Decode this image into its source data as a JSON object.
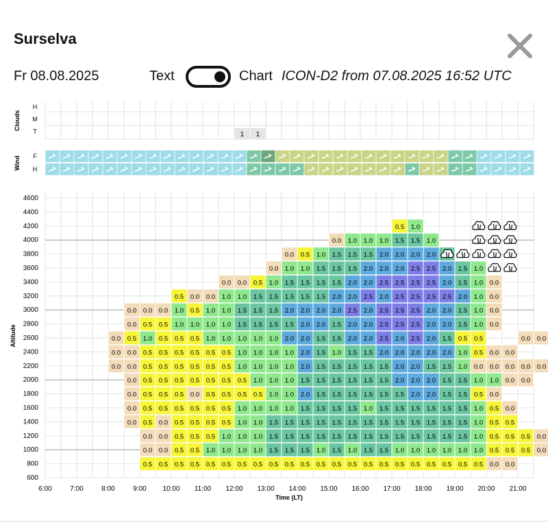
{
  "header": {
    "title": "Surselva",
    "date": "Fr 08.08.2025",
    "text_label": "Text",
    "chart_label": "Chart",
    "model_info": "ICON-D2 from 07.08.2025 16:52 UTC",
    "toggle_state": "chart"
  },
  "colors": {
    "c0.0": "#f2dcb9",
    "c0.5": "#f7f538",
    "c1.0": "#8fe88c",
    "c1.5": "#6ac6a0",
    "c2.0": "#5ea9dd",
    "c2.5": "#7e7ee8",
    "wind_light": "#9fdbe8",
    "wind_mid": "#7ec8a8",
    "wind_olive": "#c9d487",
    "wind_dark": "#6fa77c",
    "cloud_bg": "#e4e4e4"
  },
  "chart_data": {
    "type": "heatmap",
    "xlabel": "Time (LT)",
    "ylabel": "Altitude",
    "x_ticks": [
      "6:00",
      "7:00",
      "8:00",
      "9:00",
      "10:00",
      "11:00",
      "12:00",
      "13:00",
      "14:00",
      "15:00",
      "16:00",
      "17:00",
      "18:00",
      "19:00",
      "20:00",
      "21:00"
    ],
    "y_ticks": [
      "600",
      "800",
      "1000",
      "1200",
      "1400",
      "1600",
      "1800",
      "2000",
      "2200",
      "2400",
      "2600",
      "2800",
      "3000",
      "3200",
      "3400",
      "3600",
      "3800",
      "4000",
      "4200",
      "4400",
      "4600"
    ],
    "clouds_rows": [
      "H",
      "M",
      "T"
    ],
    "clouds_label": "Clouds",
    "cloud_T_values": [
      {
        "col": 12,
        "value": "1"
      },
      {
        "col": 13,
        "value": "1"
      }
    ],
    "wind_rows": [
      "F",
      "H"
    ],
    "wind_label": "Wind",
    "wind_F": [
      "L",
      "L",
      "L",
      "L",
      "L",
      "L",
      "L",
      "L",
      "L",
      "L",
      "L",
      "L",
      "L",
      "L",
      "M",
      "D",
      "O",
      "O",
      "O",
      "O",
      "O",
      "O",
      "O",
      "O",
      "O",
      "O",
      "O",
      "O",
      "M",
      "M",
      "L",
      "L",
      "L",
      "L"
    ],
    "wind_H": [
      "L",
      "L",
      "L",
      "L",
      "L",
      "L",
      "L",
      "L",
      "L",
      "L",
      "L",
      "L",
      "L",
      "L",
      "M",
      "M",
      "M",
      "M",
      "O",
      "O",
      "O",
      "O",
      "O",
      "O",
      "O",
      "M",
      "O",
      "O",
      "M",
      "M",
      "L",
      "L",
      "L",
      "L"
    ],
    "cumulus_icon_cells": [
      {
        "col": 25,
        "rows": [
          17
        ]
      },
      {
        "col": 26,
        "rows": [
          17
        ]
      },
      {
        "col": 27,
        "rows": [
          15,
          16,
          17
        ]
      },
      {
        "col": 28,
        "rows": [
          15,
          16,
          17,
          18
        ]
      },
      {
        "col": 29,
        "rows": [
          15,
          16,
          17,
          18
        ]
      }
    ],
    "rows": {
      "800": {
        "start": 6,
        "values": [
          "0.5",
          "0.5",
          "0.5",
          "0.5",
          "0.5",
          "0.5",
          "0.5",
          "0.5",
          "0.5",
          "0.5",
          "0.5",
          "0.5",
          "0.5",
          "0.5",
          "0.5",
          "0.5",
          "0.5",
          "0.5",
          "0.5",
          "0.5",
          "0.5",
          "0.5",
          "0.0",
          "0.0"
        ]
      },
      "1000": {
        "start": 6,
        "values": [
          "0.0",
          "0.0",
          "0.5",
          "0.5",
          "1.0",
          "1.0",
          "1.0",
          "1.0",
          "1.5",
          "1.5",
          "1.5",
          "1.0",
          "1.5",
          "1.0",
          "1.5",
          "1.5",
          "1.0",
          "1.0",
          "1.0",
          "1.0",
          "1.0",
          "1.0",
          "0.5",
          "0.5",
          "0.5",
          "0.0",
          "0.0",
          "",
          "0.0"
        ]
      },
      "1200": {
        "start": 6,
        "values": [
          "0.0",
          "0.0",
          "0.5",
          "0.5",
          "0.5",
          "1.0",
          "1.0",
          "1.0",
          "1.5",
          "1.5",
          "1.5",
          "1.5",
          "1.5",
          "1.5",
          "1.5",
          "1.5",
          "1.5",
          "1.5",
          "1.5",
          "1.5",
          "1.5",
          "1.0",
          "0.5",
          "0.5",
          "0.5",
          "0.0",
          "0.0",
          "0.0",
          "0.0",
          "0.0"
        ]
      },
      "1400": {
        "start": 5,
        "values": [
          "0.0",
          "0.5",
          "0.0",
          "0.5",
          "0.5",
          "0.5",
          "0.5",
          "1.0",
          "1.0",
          "1.5",
          "1.5",
          "1.5",
          "1.5",
          "1.5",
          "1.5",
          "1.5",
          "1.5",
          "1.5",
          "1.5",
          "1.5",
          "1.5",
          "1.5",
          "1.0",
          "0.5",
          "0.5",
          "",
          "",
          "0.0",
          "0.0",
          "0.0",
          "0.0"
        ]
      },
      "1600": {
        "start": 5,
        "values": [
          "0.0",
          "0.5",
          "0.5",
          "0.5",
          "0.5",
          "0.5",
          "0.5",
          "1.0",
          "1.0",
          "1.0",
          "1.0",
          "1.5",
          "1.5",
          "1.5",
          "1.5",
          "1.0",
          "1.5",
          "1.5",
          "1.5",
          "1.5",
          "1.5",
          "1.5",
          "1.0",
          "0.5",
          "0.0",
          "",
          "",
          "0.0",
          "0.0",
          "0.0",
          "0.0"
        ]
      },
      "1800": {
        "start": 5,
        "values": [
          "0.0",
          "0.5",
          "0.5",
          "0.5",
          "0.0",
          "0.5",
          "0.5",
          "0.5",
          "0.5",
          "1.0",
          "1.0",
          "2.0",
          "1.5",
          "1.5",
          "1.5",
          "1.5",
          "1.5",
          "1.5",
          "2.0",
          "2.0",
          "1.5",
          "1.5",
          "0.5",
          "0.0",
          "",
          "",
          "",
          "0.0",
          "0.0",
          "0.0",
          "0.0"
        ]
      },
      "2000": {
        "start": 5,
        "values": [
          "0.0",
          "0.5",
          "0.5",
          "0.5",
          "0.5",
          "0.5",
          "0.5",
          "0.5",
          "1.0",
          "1.0",
          "1.0",
          "1.5",
          "1.5",
          "1.5",
          "1.5",
          "1.5",
          "1.5",
          "2.0",
          "2.0",
          "2.0",
          "1.5",
          "1.5",
          "1.0",
          "1.0",
          "0.0",
          "0.0",
          "",
          "",
          "",
          "0.0"
        ]
      },
      "2200": {
        "start": 4,
        "values": [
          "0.0",
          "0.0",
          "0.5",
          "0.5",
          "0.5",
          "0.5",
          "0.5",
          "0.5",
          "1.0",
          "1.0",
          "1.0",
          "1.0",
          "2.0",
          "1.5",
          "1.5",
          "1.5",
          "1.5",
          "1.5",
          "2.0",
          "2.0",
          "1.5",
          "1.5",
          "1.0",
          "0.0",
          "0.0",
          "0.0",
          "0.0",
          "0.0",
          "0.0",
          "0.0"
        ]
      },
      "2400": {
        "start": 4,
        "values": [
          "0.0",
          "0.0",
          "0.5",
          "0.5",
          "0.5",
          "0.5",
          "0.5",
          "0.5",
          "1.0",
          "1.0",
          "1.0",
          "1.0",
          "2.0",
          "1.5",
          "1.0",
          "1.5",
          "1.5",
          "2.0",
          "2.0",
          "2.0",
          "2.0",
          "2.0",
          "1.0",
          "0.5",
          "0.0",
          "0.0"
        ]
      },
      "2600": {
        "start": 4,
        "values": [
          "0.0",
          "0.5",
          "1.0",
          "0.5",
          "0.5",
          "0.5",
          "1.0",
          "1.0",
          "1.0",
          "1.0",
          "1.0",
          "2.0",
          "2.0",
          "1.5",
          "1.5",
          "2.0",
          "2.0",
          "2.5",
          "2.0",
          "2.5",
          "2.0",
          "1.5",
          "0.5",
          "0.5",
          "",
          "",
          "0.0",
          "0.0"
        ]
      },
      "2800": {
        "start": 5,
        "values": [
          "0.0",
          "0.5",
          "0.5",
          "1.0",
          "1.0",
          "1.0",
          "1.0",
          "1.5",
          "1.5",
          "1.5",
          "1.5",
          "2.0",
          "2.0",
          "1.5",
          "2.0",
          "2.0",
          "2.5",
          "2.5",
          "2.5",
          "2.0",
          "2.0",
          "1.5",
          "1.0",
          "0.0"
        ]
      },
      "3000": {
        "start": 5,
        "values": [
          "0.0",
          "0.0",
          "0.0",
          "1.0",
          "0.5",
          "1.0",
          "1.0",
          "1.5",
          "1.5",
          "1.5",
          "2.0",
          "2.0",
          "2.0",
          "2.0",
          "2.5",
          "2.0",
          "2.5",
          "2.5",
          "2.5",
          "2.0",
          "2.0",
          "1.5",
          "1.0",
          "0.0"
        ]
      },
      "3200": {
        "start": 8,
        "values": [
          "0.5",
          "0.0",
          "0.0",
          "1.0",
          "1.0",
          "1.5",
          "1.5",
          "1.5",
          "1.5",
          "1.5",
          "2.0",
          "2.0",
          "2.5",
          "2.0",
          "2.5",
          "2.5",
          "2.5",
          "2.5",
          "2.0",
          "1.0",
          "0.0"
        ]
      },
      "3400": {
        "start": 11,
        "values": [
          "0.0",
          "0.0",
          "0.5",
          "1.0",
          "1.5",
          "1.5",
          "1.5",
          "1.5",
          "2.0",
          "2.0",
          "2.5",
          "2.5",
          "2.5",
          "2.5",
          "2.0",
          "1.5",
          "1.0",
          "0.0"
        ]
      },
      "3600": {
        "start": 14,
        "values": [
          "0.0",
          "1.0",
          "1.0",
          "1.5",
          "1.5",
          "1.5",
          "2.0",
          "2.0",
          "2.0",
          "2.5",
          "2.5",
          "2.0",
          "1.5",
          "1.0"
        ]
      },
      "3800": {
        "start": 15,
        "values": [
          "0.0",
          "0.5",
          "1.0",
          "1.5",
          "1.5",
          "1.5",
          "2.0",
          "2.0",
          "2.0",
          "2.0",
          "1.5"
        ]
      },
      "4000": {
        "start": 18,
        "values": [
          "0.0",
          "1.0",
          "1.0",
          "1.0",
          "1.5",
          "1.5",
          "1.0"
        ]
      },
      "4200": {
        "start": 22,
        "values": [
          "0.5",
          "1.0"
        ]
      }
    }
  }
}
